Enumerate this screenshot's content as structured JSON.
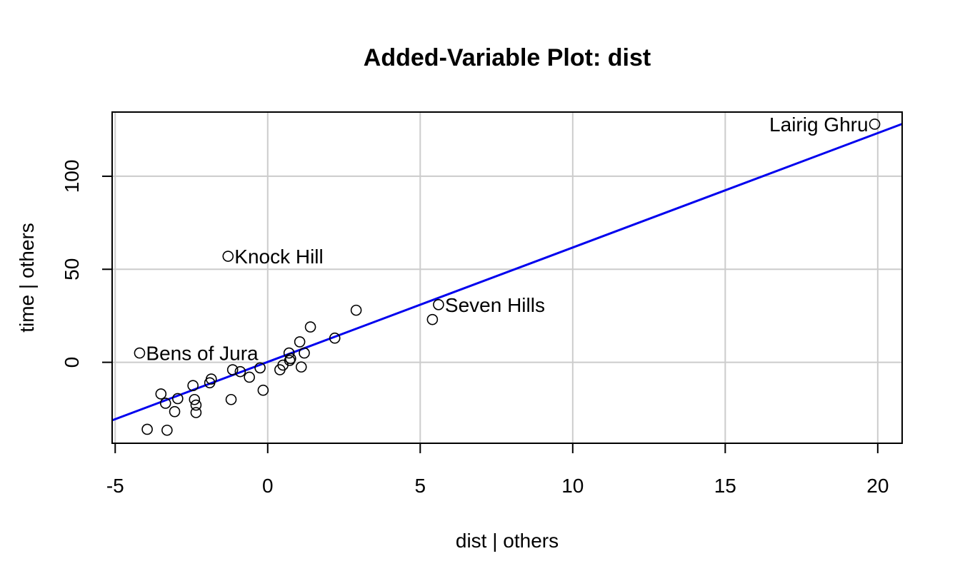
{
  "chart_data": {
    "type": "scatter",
    "title": "Added-Variable Plot: dist",
    "xlabel": "dist | others",
    "ylabel": "time  | others",
    "xlim": [
      -5.1,
      20.8
    ],
    "ylim": [
      -43.5,
      134.5
    ],
    "x_ticks": [
      -5,
      0,
      5,
      10,
      15,
      20
    ],
    "y_ticks": [
      0,
      50,
      100
    ],
    "grid": true,
    "fit_line": {
      "intercept": 0.2,
      "slope": 6.15,
      "color": "#0000ee"
    },
    "points": [
      {
        "x": 19.9,
        "y": 128,
        "label": "Lairig Ghru"
      },
      {
        "x": -1.3,
        "y": 57,
        "label": "Knock Hill"
      },
      {
        "x": 5.6,
        "y": 31,
        "label": "Seven Hills"
      },
      {
        "x": -4.2,
        "y": 5,
        "label": "Bens of Jura"
      },
      {
        "x": 5.4,
        "y": 23
      },
      {
        "x": 2.9,
        "y": 28
      },
      {
        "x": 2.2,
        "y": 13
      },
      {
        "x": 1.4,
        "y": 19
      },
      {
        "x": 1.05,
        "y": 11
      },
      {
        "x": 1.2,
        "y": 5
      },
      {
        "x": 1.1,
        "y": -2.5
      },
      {
        "x": 0.7,
        "y": 5
      },
      {
        "x": 0.75,
        "y": 2
      },
      {
        "x": 0.72,
        "y": 1
      },
      {
        "x": 0.5,
        "y": -1.5
      },
      {
        "x": 0.4,
        "y": -4
      },
      {
        "x": -0.25,
        "y": -3
      },
      {
        "x": -0.15,
        "y": -15
      },
      {
        "x": -0.6,
        "y": -8
      },
      {
        "x": -0.9,
        "y": -5
      },
      {
        "x": -1.15,
        "y": -4
      },
      {
        "x": -1.2,
        "y": -20
      },
      {
        "x": -1.85,
        "y": -9
      },
      {
        "x": -1.9,
        "y": -11
      },
      {
        "x": -2.45,
        "y": -12.5
      },
      {
        "x": -2.4,
        "y": -20
      },
      {
        "x": -2.35,
        "y": -23
      },
      {
        "x": -2.35,
        "y": -27
      },
      {
        "x": -2.95,
        "y": -19.5
      },
      {
        "x": -3.05,
        "y": -26.5
      },
      {
        "x": -3.35,
        "y": -22
      },
      {
        "x": -3.5,
        "y": -17
      },
      {
        "x": -3.3,
        "y": -36.5
      },
      {
        "x": -3.95,
        "y": -36
      }
    ]
  }
}
